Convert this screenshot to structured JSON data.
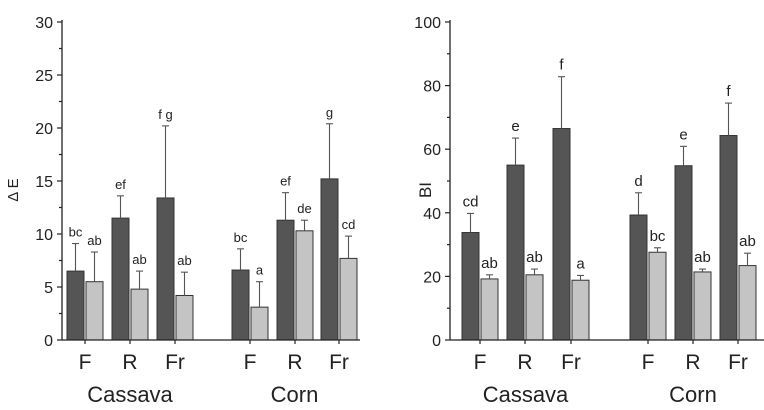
{
  "colors": {
    "dark": "#555555",
    "light": "#c4c4c4",
    "edge": "#333333",
    "axis": "#222222"
  },
  "chart_data": [
    {
      "type": "bar",
      "ylabel": "Δ E",
      "xlabel": "",
      "ylim": [
        0,
        30
      ],
      "yticks": [
        0,
        5,
        10,
        15,
        20,
        25,
        30
      ],
      "groups": [
        "Cassava",
        "Corn"
      ],
      "categories": [
        "F",
        "R",
        "Fr",
        "F",
        "R",
        "Fr"
      ],
      "series": [
        {
          "color": "#555555",
          "values": [
            6.5,
            11.5,
            13.4,
            6.6,
            11.3,
            15.2
          ],
          "errors": [
            2.6,
            2.1,
            6.8,
            2.0,
            2.6,
            5.2
          ],
          "labels": [
            "bc",
            "ef",
            "f g",
            "bc",
            "ef",
            "g"
          ]
        },
        {
          "color": "#c4c4c4",
          "values": [
            5.5,
            4.8,
            4.2,
            3.1,
            10.3,
            7.7
          ],
          "errors": [
            2.8,
            1.7,
            2.2,
            2.4,
            1.0,
            2.1
          ],
          "labels": [
            "ab",
            "ab",
            "ab",
            "a",
            "de",
            "cd"
          ]
        }
      ]
    },
    {
      "type": "bar",
      "ylabel": "BI",
      "xlabel": "",
      "ylim": [
        0,
        100
      ],
      "yticks": [
        0,
        20,
        40,
        60,
        80,
        100
      ],
      "groups": [
        "Cassava",
        "Corn"
      ],
      "categories": [
        "F",
        "R",
        "Fr",
        "F",
        "R",
        "Fr"
      ],
      "series": [
        {
          "color": "#555555",
          "values": [
            33.8,
            55.0,
            66.5,
            39.3,
            54.8,
            64.3
          ],
          "errors": [
            6.0,
            8.5,
            16.3,
            7.0,
            6.1,
            10.2
          ],
          "labels": [
            "cd",
            "e",
            "f",
            "d",
            "e",
            "f"
          ]
        },
        {
          "color": "#c4c4c4",
          "values": [
            19.2,
            20.5,
            18.8,
            27.6,
            21.4,
            23.4
          ],
          "errors": [
            1.3,
            1.8,
            1.5,
            1.4,
            0.9,
            3.9
          ],
          "labels": [
            "ab",
            "ab",
            "a",
            "bc",
            "ab",
            "ab"
          ]
        }
      ]
    }
  ]
}
